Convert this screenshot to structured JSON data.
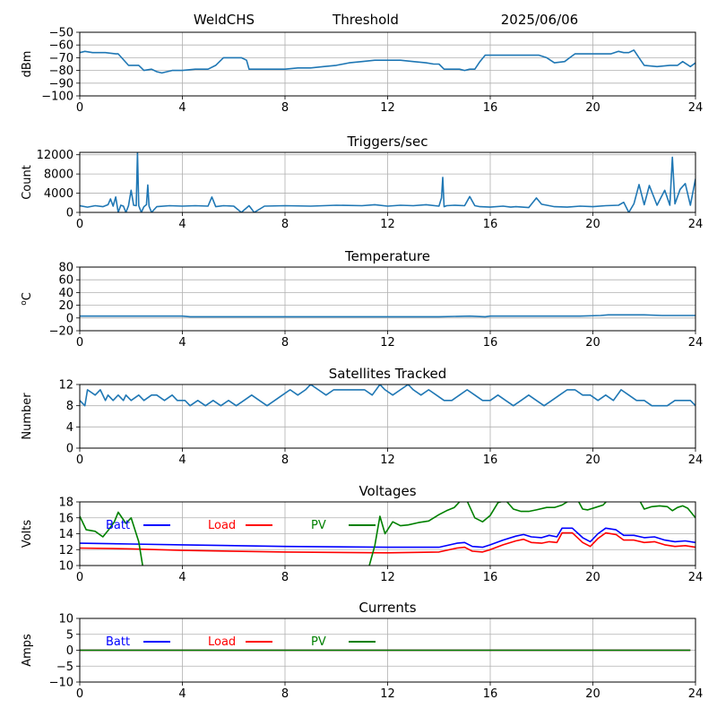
{
  "header": {
    "station": "WeldCHS",
    "mode": "Threshold",
    "date": "2025/06/06"
  },
  "chart_data": [
    {
      "type": "line",
      "title": "",
      "xlabel": "",
      "ylabel": "dBm",
      "xlim": [
        0,
        24
      ],
      "ylim": [
        -100,
        -50
      ],
      "xticks": [
        0,
        4,
        8,
        12,
        16,
        20,
        24
      ],
      "yticks": [
        -100,
        -90,
        -80,
        -70,
        -60,
        -50
      ],
      "grid": true,
      "series": [
        {
          "color": "#1f77b4",
          "x": [
            0,
            0.2,
            0.5,
            1.0,
            1.4,
            1.5,
            1.9,
            2.0,
            2.3,
            2.5,
            2.8,
            3.0,
            3.2,
            3.4,
            3.6,
            4.0,
            4.5,
            5.0,
            5.3,
            5.6,
            5.8,
            6.0,
            6.3,
            6.5,
            6.6,
            6.8,
            7.0,
            7.5,
            8.0,
            8.5,
            9.0,
            9.5,
            10.0,
            10.5,
            11.0,
            11.5,
            12.0,
            12.5,
            13.0,
            13.5,
            13.8,
            14.0,
            14.2,
            14.5,
            14.8,
            15.0,
            15.2,
            15.4,
            15.6,
            15.8,
            16.0,
            16.5,
            17.0,
            17.5,
            17.9,
            18.2,
            18.5,
            18.9,
            19.1,
            19.3,
            19.6,
            20.0,
            20.3,
            20.5,
            20.7,
            21.0,
            21.2,
            21.4,
            21.6,
            21.8,
            22.0,
            22.5,
            23.0,
            23.3,
            23.5,
            23.8,
            24.0
          ],
          "y": [
            -66,
            -65,
            -66,
            -66,
            -67,
            -67,
            -76,
            -76,
            -76,
            -80,
            -79,
            -81,
            -82,
            -81,
            -80,
            -80,
            -79,
            -79,
            -76,
            -70,
            -70,
            -70,
            -70,
            -72,
            -79,
            -79,
            -79,
            -79,
            -79,
            -78,
            -78,
            -77,
            -76,
            -74,
            -73,
            -72,
            -72,
            -72,
            -73,
            -74,
            -75,
            -75,
            -79,
            -79,
            -79,
            -80,
            -79,
            -79,
            -73,
            -68,
            -68,
            -68,
            -68,
            -68,
            -68,
            -70,
            -74,
            -73,
            -70,
            -67,
            -67,
            -67,
            -67,
            -67,
            -67,
            -65,
            -66,
            -66,
            -64,
            -70,
            -76,
            -77,
            -76,
            -76,
            -73,
            -77,
            -74
          ]
        }
      ]
    },
    {
      "type": "line",
      "title": "Triggers/sec",
      "xlabel": "",
      "ylabel": "Count",
      "xlim": [
        0,
        24
      ],
      "ylim": [
        0,
        12500
      ],
      "xticks": [
        0,
        4,
        8,
        12,
        16,
        20,
        24
      ],
      "yticks": [
        0,
        4000,
        8000,
        12000
      ],
      "grid": true,
      "series": [
        {
          "color": "#1f77b4",
          "x": [
            0,
            0.3,
            0.6,
            0.9,
            1.1,
            1.2,
            1.3,
            1.4,
            1.5,
            1.6,
            1.7,
            1.8,
            1.9,
            2.0,
            2.1,
            2.2,
            2.25,
            2.3,
            2.4,
            2.5,
            2.6,
            2.65,
            2.7,
            2.8,
            3.0,
            3.5,
            4.0,
            4.5,
            5.0,
            5.15,
            5.3,
            5.6,
            6.0,
            6.3,
            6.6,
            6.8,
            7.2,
            8.0,
            9.0,
            10.0,
            11.0,
            11.5,
            12.0,
            12.5,
            13.0,
            13.5,
            14.0,
            14.1,
            14.15,
            14.2,
            14.3,
            14.6,
            15.0,
            15.2,
            15.4,
            15.6,
            16.0,
            16.5,
            16.8,
            17.0,
            17.5,
            17.8,
            18.0,
            18.5,
            19.0,
            19.5,
            20.0,
            20.5,
            21.0,
            21.2,
            21.4,
            21.6,
            21.8,
            22.0,
            22.2,
            22.5,
            22.8,
            23.0,
            23.1,
            23.2,
            23.4,
            23.6,
            23.8,
            24.0
          ],
          "y": [
            1400,
            1100,
            1400,
            1200,
            1600,
            2800,
            1300,
            3200,
            0,
            1500,
            1300,
            0,
            1400,
            4600,
            1500,
            1400,
            12400,
            1400,
            0,
            1200,
            1600,
            5700,
            1300,
            0,
            1200,
            1400,
            1300,
            1400,
            1300,
            3200,
            1200,
            1400,
            1300,
            0,
            1400,
            0,
            1300,
            1400,
            1300,
            1500,
            1400,
            1600,
            1300,
            1500,
            1400,
            1600,
            1300,
            3000,
            7300,
            1200,
            1400,
            1500,
            1400,
            3300,
            1400,
            1200,
            1100,
            1300,
            1100,
            1200,
            1000,
            3000,
            1700,
            1200,
            1100,
            1300,
            1200,
            1400,
            1500,
            2100,
            0,
            1800,
            5800,
            1600,
            5600,
            1500,
            4600,
            1500,
            11500,
            1800,
            4800,
            6000,
            1500,
            7000
          ]
        }
      ]
    },
    {
      "type": "line",
      "title": "Temperature",
      "xlabel": "",
      "ylabel": "oC",
      "xlim": [
        0,
        24
      ],
      "ylim": [
        -20,
        80
      ],
      "xticks": [
        0,
        4,
        8,
        12,
        16,
        20,
        24
      ],
      "yticks": [
        -20,
        0,
        20,
        40,
        60,
        80
      ],
      "grid": true,
      "series": [
        {
          "color": "#1f77b4",
          "x": [
            0,
            2,
            4,
            4.3,
            6,
            8,
            10,
            12,
            14,
            15.2,
            15.8,
            16,
            18,
            19.5,
            20.3,
            20.6,
            22,
            22.7,
            24
          ],
          "y": [
            3,
            3,
            3,
            2,
            2,
            2,
            2,
            2,
            2,
            3,
            2,
            3,
            3,
            3,
            4,
            5,
            5,
            4,
            4
          ]
        }
      ]
    },
    {
      "type": "line",
      "title": "Satellites Tracked",
      "xlabel": "",
      "ylabel": "Number",
      "xlim": [
        0,
        24
      ],
      "ylim": [
        0,
        12
      ],
      "xticks": [
        0,
        4,
        8,
        12,
        16,
        20,
        24
      ],
      "yticks": [
        0,
        4,
        8,
        12
      ],
      "grid": true,
      "series": [
        {
          "color": "#1f77b4",
          "x": [
            0,
            0.2,
            0.3,
            0.6,
            0.8,
            1.0,
            1.1,
            1.3,
            1.5,
            1.7,
            1.8,
            2.0,
            2.3,
            2.5,
            2.8,
            3.0,
            3.3,
            3.6,
            3.8,
            4.1,
            4.3,
            4.6,
            4.9,
            5.2,
            5.5,
            5.8,
            6.1,
            6.4,
            6.7,
            7.0,
            7.3,
            7.6,
            7.9,
            8.2,
            8.5,
            8.8,
            9.0,
            9.3,
            9.6,
            9.9,
            10.2,
            10.5,
            10.8,
            11.1,
            11.4,
            11.7,
            11.9,
            12.2,
            12.5,
            12.8,
            13.0,
            13.3,
            13.6,
            13.9,
            14.2,
            14.5,
            14.8,
            15.1,
            15.4,
            15.7,
            16.0,
            16.3,
            16.6,
            16.9,
            17.2,
            17.5,
            17.8,
            18.1,
            18.4,
            18.7,
            19.0,
            19.3,
            19.6,
            19.9,
            20.2,
            20.5,
            20.8,
            21.1,
            21.4,
            21.7,
            22.0,
            22.3,
            22.6,
            22.9,
            23.2,
            23.5,
            23.8,
            24.0
          ],
          "y": [
            9,
            8,
            11,
            10,
            11,
            9,
            10,
            9,
            10,
            9,
            10,
            9,
            10,
            9,
            10,
            10,
            9,
            10,
            9,
            9,
            8,
            9,
            8,
            9,
            8,
            9,
            8,
            9,
            10,
            9,
            8,
            9,
            10,
            11,
            10,
            11,
            12,
            11,
            10,
            11,
            11,
            11,
            11,
            11,
            10,
            12,
            11,
            10,
            11,
            12,
            11,
            10,
            11,
            10,
            9,
            9,
            10,
            11,
            10,
            9,
            9,
            10,
            9,
            8,
            9,
            10,
            9,
            8,
            9,
            10,
            11,
            11,
            10,
            10,
            9,
            10,
            9,
            11,
            10,
            9,
            9,
            8,
            8,
            8,
            9,
            9,
            9,
            8
          ]
        }
      ]
    },
    {
      "type": "line",
      "title": "Voltages",
      "xlabel": "",
      "ylabel": "Volts",
      "xlim": [
        0,
        24
      ],
      "ylim": [
        10,
        18
      ],
      "xticks": [
        0,
        4,
        8,
        12,
        16,
        20,
        24
      ],
      "yticks": [
        10,
        12,
        14,
        16,
        18
      ],
      "grid": true,
      "legend": "inline-top",
      "series": [
        {
          "name": "Batt",
          "color": "#0000ff",
          "x": [
            0,
            2,
            4,
            8,
            12,
            14,
            14.7,
            15.0,
            15.3,
            15.7,
            16.0,
            16.5,
            17.0,
            17.3,
            17.6,
            18.0,
            18.3,
            18.6,
            18.8,
            19.2,
            19.6,
            19.9,
            20.2,
            20.5,
            20.9,
            21.2,
            21.6,
            22.0,
            22.4,
            22.8,
            23.2,
            23.6,
            24.0
          ],
          "y": [
            12.8,
            12.7,
            12.6,
            12.4,
            12.3,
            12.3,
            12.8,
            12.9,
            12.4,
            12.3,
            12.6,
            13.2,
            13.7,
            13.9,
            13.6,
            13.5,
            13.8,
            13.6,
            14.7,
            14.7,
            13.5,
            13.0,
            14.0,
            14.7,
            14.5,
            13.8,
            13.8,
            13.5,
            13.6,
            13.2,
            13.0,
            13.1,
            12.9
          ]
        },
        {
          "name": "Load",
          "color": "#ff0000",
          "x": [
            0,
            2,
            4,
            8,
            12,
            14,
            14.7,
            15.0,
            15.3,
            15.7,
            16.0,
            16.5,
            17.0,
            17.3,
            17.6,
            18.0,
            18.3,
            18.6,
            18.8,
            19.2,
            19.6,
            19.9,
            20.2,
            20.5,
            20.9,
            21.2,
            21.6,
            22.0,
            22.4,
            22.8,
            23.2,
            23.6,
            24.0
          ],
          "y": [
            12.2,
            12.1,
            11.9,
            11.7,
            11.6,
            11.7,
            12.2,
            12.3,
            11.8,
            11.7,
            12.0,
            12.6,
            13.1,
            13.3,
            12.9,
            12.8,
            13.0,
            12.9,
            14.1,
            14.1,
            12.9,
            12.4,
            13.4,
            14.1,
            13.9,
            13.2,
            13.2,
            12.9,
            13.0,
            12.6,
            12.4,
            12.5,
            12.3
          ]
        },
        {
          "name": "PV",
          "color": "#008000",
          "x": [
            0,
            0.25,
            0.6,
            0.9,
            1.1,
            1.35,
            1.5,
            1.8,
            2.0,
            2.3,
            2.5,
            11.2,
            11.5,
            11.7,
            11.9,
            12.2,
            12.5,
            12.8,
            13.2,
            13.6,
            14.0,
            14.3,
            14.6,
            14.8,
            15.0,
            15.4,
            15.7,
            16.0,
            16.3,
            16.6,
            16.9,
            17.2,
            17.5,
            17.8,
            18.2,
            18.5,
            18.8,
            19.1,
            19.4,
            19.6,
            19.8,
            20.1,
            20.4,
            20.6,
            20.9,
            21.2,
            21.5,
            21.8,
            22.0,
            22.3,
            22.6,
            22.9,
            23.1,
            23.3,
            23.5,
            23.7,
            24.0
          ],
          "y": [
            16.2,
            14.5,
            14.3,
            13.6,
            14.4,
            15.5,
            16.7,
            15.3,
            16.0,
            13.0,
            9.0,
            9.0,
            12.5,
            16.2,
            14.0,
            15.5,
            15.0,
            15.1,
            15.4,
            15.6,
            16.4,
            16.9,
            17.3,
            18.0,
            18.8,
            16.0,
            15.5,
            16.3,
            17.9,
            18.2,
            17.1,
            16.8,
            16.8,
            17.0,
            17.3,
            17.3,
            17.6,
            18.2,
            18.3,
            17.1,
            17.0,
            17.3,
            17.6,
            18.3,
            18.2,
            18.1,
            18.2,
            18.3,
            17.1,
            17.4,
            17.5,
            17.4,
            16.9,
            17.3,
            17.5,
            17.2,
            16.0
          ]
        }
      ]
    },
    {
      "type": "line",
      "title": "Currents",
      "xlabel": "",
      "ylabel": "Amps",
      "xlim": [
        0,
        24
      ],
      "ylim": [
        -10,
        10
      ],
      "xticks": [
        0,
        4,
        8,
        12,
        16,
        20,
        24
      ],
      "yticks": [
        -10,
        -5,
        0,
        5,
        10
      ],
      "grid": true,
      "legend": "inline-top",
      "series": [
        {
          "name": "Batt",
          "color": "#0000ff",
          "x": [
            0,
            23.8
          ],
          "y": [
            0,
            0
          ]
        },
        {
          "name": "Load",
          "color": "#ff0000",
          "x": [
            0,
            23.8
          ],
          "y": [
            0,
            0
          ]
        },
        {
          "name": "PV",
          "color": "#008000",
          "x": [
            0,
            23.8
          ],
          "y": [
            0,
            0
          ]
        }
      ]
    }
  ]
}
